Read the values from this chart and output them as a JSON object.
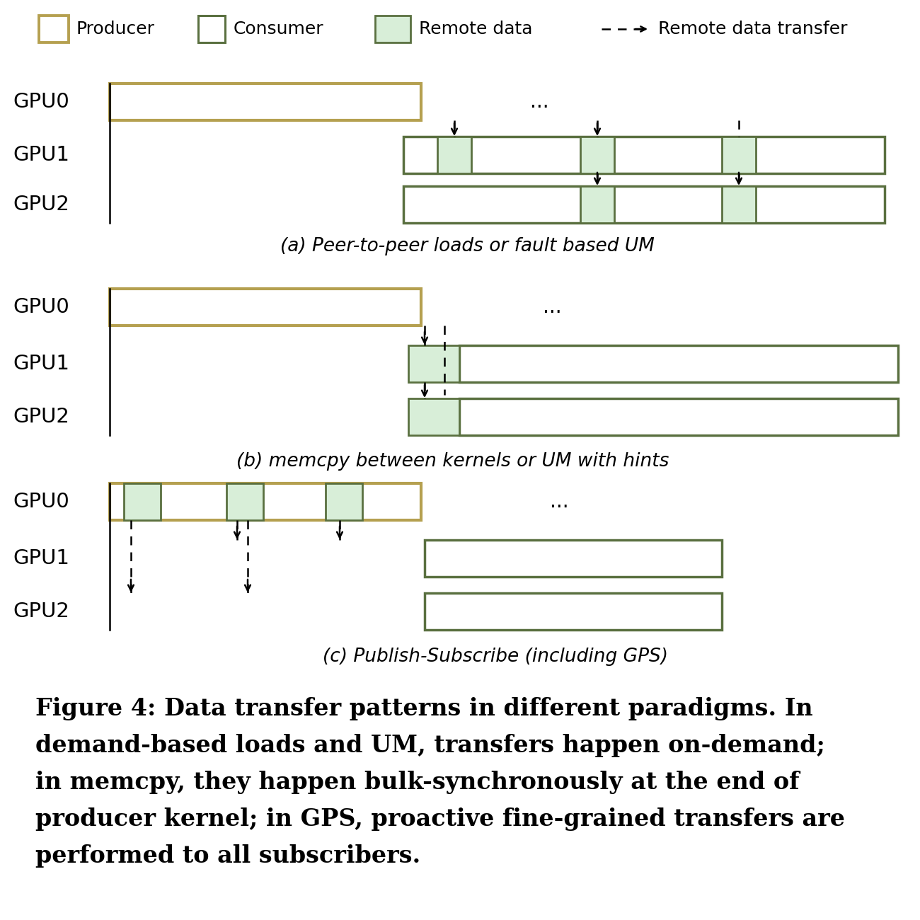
{
  "producer_color": "#b5a050",
  "consumer_color": "#5a7040",
  "remote_fill": "#d8eed8",
  "remote_edge": "#5a7040",
  "bg_color": "#ffffff",
  "legend_fontsize": 18,
  "gpu_label_fontsize": 21,
  "section_fontsize": 19,
  "caption_fontsize": 24,
  "sections": [
    "(a) Peer-to-peer loads or fault based UM",
    "(b) memcpy between kernels or UM with hints",
    "(c) Publish-Subscribe (including GPS)"
  ],
  "figure_caption_lines": [
    "Figure 4: Data transfer patterns in different paradigms. In",
    "demand-based loads and UM, transfers happen on-demand;",
    "in memcpy, they happen bulk-synchronously at the end of",
    "producer kernel; in GPS, proactive fine-grained transfers are",
    "performed to all subscribers."
  ]
}
